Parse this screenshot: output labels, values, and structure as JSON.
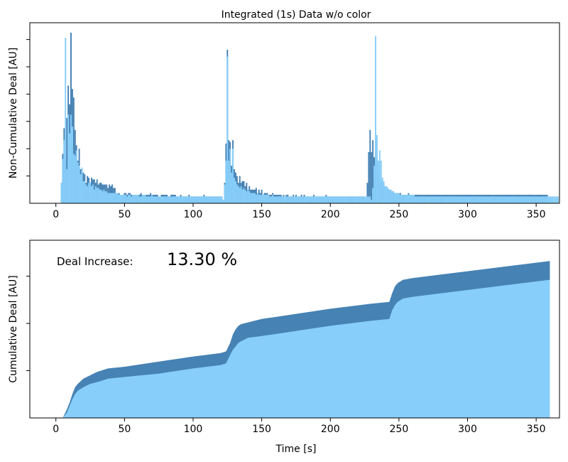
{
  "figure": {
    "title": "Integrated (1s) Data w/o color",
    "annotation_label": "Deal Increase:",
    "annotation_value": "13.30 %"
  },
  "colors": {
    "dark": "#4682B4",
    "light": "#87CEFA",
    "axis": "#000000"
  },
  "chart_data": [
    {
      "type": "bar",
      "title": "Integrated (1s) Data w/o color",
      "xlabel": "",
      "ylabel": "Non-Cumulative Deal [AU]",
      "xlim": [
        -19,
        367
      ],
      "ylim": [
        0,
        1.0
      ],
      "xticks": [
        0,
        50,
        100,
        150,
        200,
        250,
        300,
        350
      ],
      "xtick_labels": [
        "0",
        "50",
        "100",
        "150",
        "200",
        "250",
        "300",
        "350"
      ],
      "yticks": [
        0.16,
        0.32,
        0.48,
        0.64,
        0.8,
        0.96
      ],
      "y_tick_labels_shown": false,
      "grid": false,
      "x_start": 4,
      "x_step": 1,
      "series": [
        {
          "name": "",
          "color": "#4682B4",
          "values": [
            0.12,
            0.29,
            0.44,
            0.28,
            0.5,
            0.69,
            0.58,
            1.0,
            0.67,
            0.62,
            0.43,
            0.34,
            0.25,
            0.32,
            0.2,
            0.14,
            0.18,
            0.17,
            0.12,
            0.16,
            0.15,
            0.12,
            0.15,
            0.14,
            0.14,
            0.12,
            0.14,
            0.11,
            0.12,
            0.12,
            0.11,
            0.11,
            0.11,
            0.11,
            0.09,
            0.11,
            0.1,
            0.11,
            0.09,
            0.09,
            0.06,
            0.06,
            0.06,
            0.05,
            0.05,
            0.05,
            0.06,
            0.06,
            0.05,
            0.06,
            0.06,
            0.05,
            0.05,
            0.05,
            0.05,
            0.05,
            0.05,
            0.05,
            0.06,
            0.05,
            0.05,
            0.05,
            0.05,
            0.05,
            0.05,
            0.06,
            0.05,
            0.05,
            0.05,
            0.05,
            0.05,
            0.04,
            0.04,
            0.05,
            0.05,
            0.05,
            0.05,
            0.05,
            0.04,
            0.04,
            0.05,
            0.05,
            0.05,
            0.05,
            0.04,
            0.04,
            0.04,
            0.05,
            0.04,
            0.04,
            0.04,
            0.04,
            0.04,
            0.05,
            0.04,
            0.04,
            0.04,
            0.04,
            0.04,
            0.04,
            0.04,
            0.04,
            0.04,
            0.04,
            0.05,
            0.04,
            0.04,
            0.04,
            0.04,
            0.04,
            0.04,
            0.04,
            0.04,
            0.04,
            0.04,
            0.04,
            0.04,
            0.04,
            0.02,
            0.12,
            0.35,
            0.9,
            0.37,
            0.36,
            0.22,
            0.37,
            0.2,
            0.18,
            0.16,
            0.12,
            0.16,
            0.12,
            0.13,
            0.13,
            0.1,
            0.12,
            0.08,
            0.1,
            0.08,
            0.08,
            0.08,
            0.08,
            0.09,
            0.06,
            0.08,
            0.06,
            0.08,
            0.05,
            0.06,
            0.06,
            0.06,
            0.05,
            0.05,
            0.05,
            0.06,
            0.05,
            0.05,
            0.05,
            0.05,
            0.05,
            0.05,
            0.04,
            0.05,
            0.04,
            0.05,
            0.05,
            0.04,
            0.04,
            0.04,
            0.05,
            0.04,
            0.05,
            0.04,
            0.04,
            0.04,
            0.05,
            0.04,
            0.05,
            0.04,
            0.04,
            0.04,
            0.04,
            0.04,
            0.04,
            0.05,
            0.04,
            0.04,
            0.04,
            0.04,
            0.04,
            0.04,
            0.04,
            0.04,
            0.05,
            0.04,
            0.04,
            0.04,
            0.04,
            0.04,
            0.04,
            0.04,
            0.04,
            0.04,
            0.04,
            0.04,
            0.04,
            0.04,
            0.04,
            0.04,
            0.04,
            0.04,
            0.04,
            0.04,
            0.04,
            0.04,
            0.04,
            0.04,
            0.04,
            0.04,
            0.04,
            0.04,
            0.04,
            0.02,
            0.12,
            0.3,
            0.43,
            0.3,
            0.37,
            0.27,
            0.3,
            0.24,
            0.18,
            0.14,
            0.13,
            0.12,
            0.1,
            0.1,
            0.08,
            0.09,
            0.07,
            0.08,
            0.07,
            0.07,
            0.06,
            0.06,
            0.06,
            0.05,
            0.06,
            0.05,
            0.05,
            0.05,
            0.05,
            0.05,
            0.06,
            0.05,
            0.05,
            0.05,
            0.05,
            0.05,
            0.05,
            0.05,
            0.05,
            0.05,
            0.05,
            0.05,
            0.05,
            0.05,
            0.05,
            0.05,
            0.05,
            0.05,
            0.05,
            0.05,
            0.05,
            0.05,
            0.05,
            0.05,
            0.05,
            0.05,
            0.05,
            0.05,
            0.05,
            0.05,
            0.05,
            0.05,
            0.05,
            0.05,
            0.05,
            0.05,
            0.05,
            0.05,
            0.05,
            0.05,
            0.05,
            0.05,
            0.05,
            0.05,
            0.05,
            0.05,
            0.05,
            0.05,
            0.05,
            0.05,
            0.05,
            0.05,
            0.05,
            0.05,
            0.05,
            0.05,
            0.05,
            0.05,
            0.05,
            0.05,
            0.05,
            0.05,
            0.05,
            0.05,
            0.05,
            0.05,
            0.05,
            0.05,
            0.05,
            0.05,
            0.05,
            0.05,
            0.05,
            0.05,
            0.05,
            0.05,
            0.05,
            0.05,
            0.05,
            0.05,
            0.05,
            0.05,
            0.05,
            0.05,
            0.05,
            0.05,
            0.05,
            0.05,
            0.05,
            0.05,
            0.05,
            0.05,
            0.05,
            0.05,
            0.05,
            0.05,
            0.05,
            0.05,
            0.05,
            0.05,
            0.05,
            0.05
          ]
        },
        {
          "name": "",
          "color": "#87CEFA",
          "values": [
            0.12,
            0.26,
            0.37,
            0.97,
            0.2,
            0.52,
            0.41,
            0.52,
            0.45,
            0.29,
            0.28,
            0.31,
            0.24,
            0.22,
            0.17,
            0.21,
            0.13,
            0.13,
            0.11,
            0.1,
            0.12,
            0.12,
            0.1,
            0.11,
            0.08,
            0.1,
            0.09,
            0.09,
            0.08,
            0.08,
            0.07,
            0.08,
            0.07,
            0.07,
            0.06,
            0.06,
            0.06,
            0.06,
            0.06,
            0.06,
            0.06,
            0.06,
            0.05,
            0.05,
            0.05,
            0.05,
            0.05,
            0.05,
            0.04,
            0.05,
            0.05,
            0.04,
            0.05,
            0.05,
            0.05,
            0.05,
            0.05,
            0.04,
            0.04,
            0.05,
            0.05,
            0.05,
            0.04,
            0.04,
            0.04,
            0.04,
            0.05,
            0.04,
            0.04,
            0.04,
            0.04,
            0.04,
            0.04,
            0.04,
            0.04,
            0.04,
            0.04,
            0.04,
            0.04,
            0.04,
            0.04,
            0.04,
            0.04,
            0.04,
            0.04,
            0.04,
            0.04,
            0.04,
            0.04,
            0.04,
            0.04,
            0.04,
            0.04,
            0.04,
            0.04,
            0.04,
            0.04,
            0.04,
            0.04,
            0.04,
            0.04,
            0.04,
            0.04,
            0.04,
            0.04,
            0.04,
            0.04,
            0.04,
            0.04,
            0.04,
            0.04,
            0.04,
            0.04,
            0.04,
            0.04,
            0.04,
            0.04,
            0.04,
            0.02,
            0.11,
            0.25,
            0.86,
            0.25,
            0.32,
            0.18,
            0.32,
            0.15,
            0.13,
            0.11,
            0.1,
            0.09,
            0.1,
            0.08,
            0.09,
            0.08,
            0.07,
            0.08,
            0.07,
            0.06,
            0.06,
            0.06,
            0.06,
            0.05,
            0.06,
            0.05,
            0.05,
            0.05,
            0.05,
            0.05,
            0.05,
            0.05,
            0.05,
            0.04,
            0.04,
            0.05,
            0.04,
            0.04,
            0.04,
            0.04,
            0.04,
            0.04,
            0.04,
            0.04,
            0.04,
            0.04,
            0.04,
            0.04,
            0.04,
            0.04,
            0.04,
            0.04,
            0.04,
            0.04,
            0.04,
            0.04,
            0.04,
            0.04,
            0.04,
            0.04,
            0.04,
            0.04,
            0.04,
            0.04,
            0.04,
            0.04,
            0.04,
            0.04,
            0.04,
            0.04,
            0.04,
            0.04,
            0.04,
            0.04,
            0.04,
            0.04,
            0.04,
            0.04,
            0.04,
            0.04,
            0.04,
            0.04,
            0.04,
            0.04,
            0.04,
            0.04,
            0.04,
            0.04,
            0.04,
            0.04,
            0.04,
            0.04,
            0.04,
            0.04,
            0.04,
            0.04,
            0.04,
            0.04,
            0.04,
            0.04,
            0.04,
            0.04,
            0.04,
            0.04,
            0.04,
            0.04,
            0.04,
            0.02,
            0.09,
            0.22,
            0.98,
            0.4,
            0.25,
            0.31,
            0.25,
            0.15,
            0.13,
            0.1,
            0.1,
            0.09,
            0.08,
            0.08,
            0.07,
            0.07,
            0.06,
            0.06,
            0.06,
            0.06,
            0.05,
            0.05,
            0.05,
            0.05,
            0.05,
            0.05,
            0.05,
            0.05,
            0.05,
            0.05,
            0.05,
            0.04,
            0.04,
            0.04,
            0.04,
            0.04,
            0.04,
            0.04,
            0.04,
            0.04,
            0.04,
            0.04,
            0.04,
            0.04,
            0.04,
            0.04,
            0.04,
            0.04,
            0.04,
            0.04,
            0.04,
            0.04,
            0.04,
            0.04,
            0.04,
            0.04,
            0.04,
            0.04,
            0.04,
            0.04,
            0.04,
            0.04,
            0.04,
            0.04,
            0.04,
            0.04,
            0.04,
            0.04,
            0.04,
            0.04,
            0.04,
            0.04,
            0.04,
            0.04,
            0.04,
            0.04,
            0.04,
            0.04,
            0.04,
            0.04,
            0.04,
            0.04,
            0.04,
            0.04,
            0.04,
            0.04,
            0.04,
            0.04,
            0.04,
            0.04,
            0.04,
            0.04,
            0.04,
            0.04,
            0.04,
            0.04,
            0.04,
            0.04,
            0.04,
            0.04,
            0.04,
            0.04,
            0.04,
            0.04,
            0.04,
            0.04,
            0.04,
            0.04,
            0.04,
            0.04,
            0.04,
            0.04,
            0.04,
            0.04,
            0.04,
            0.04,
            0.04,
            0.04,
            0.04,
            0.04,
            0.04,
            0.04,
            0.04,
            0.04,
            0.04,
            0.04,
            0.04,
            0.04,
            0.04,
            0.04,
            0.04,
            0.04,
            0.04,
            0.04,
            0.04,
            0.04
          ]
        }
      ]
    },
    {
      "type": "area",
      "title": "",
      "xlabel": "Time [s]",
      "ylabel": "Cumulative Deal [AU]",
      "xlim": [
        -19,
        367
      ],
      "ylim": [
        0,
        1.0
      ],
      "xticks": [
        0,
        50,
        100,
        150,
        200,
        250,
        300,
        350
      ],
      "xtick_labels": [
        "0",
        "50",
        "100",
        "150",
        "200",
        "250",
        "300",
        "350"
      ],
      "yticks": [
        0.277,
        0.554,
        0.831
      ],
      "y_tick_labels_shown": false,
      "grid": false,
      "series": [
        {
          "name": "",
          "color": "#4682B4",
          "x": [
            5,
            8,
            10,
            12,
            14,
            16,
            20,
            25,
            30,
            38,
            50,
            75,
            100,
            120,
            124,
            127,
            129,
            131,
            133,
            135,
            140,
            150,
            175,
            200,
            230,
            243,
            245,
            247,
            249,
            251,
            253,
            260,
            280,
            300,
            330,
            360
          ],
          "y": [
            0.0,
            0.05,
            0.09,
            0.14,
            0.18,
            0.2,
            0.23,
            0.25,
            0.27,
            0.29,
            0.3,
            0.33,
            0.36,
            0.38,
            0.39,
            0.44,
            0.49,
            0.52,
            0.54,
            0.55,
            0.56,
            0.58,
            0.61,
            0.64,
            0.67,
            0.68,
            0.73,
            0.77,
            0.79,
            0.8,
            0.81,
            0.82,
            0.84,
            0.86,
            0.89,
            0.92
          ]
        },
        {
          "name": "",
          "color": "#87CEFA",
          "x": [
            5,
            8,
            10,
            12,
            14,
            16,
            20,
            25,
            30,
            38,
            50,
            75,
            100,
            120,
            124,
            127,
            129,
            131,
            133,
            135,
            140,
            150,
            175,
            200,
            230,
            243,
            245,
            247,
            249,
            251,
            253,
            260,
            280,
            300,
            330,
            360
          ],
          "y": [
            0.0,
            0.03,
            0.07,
            0.11,
            0.14,
            0.16,
            0.18,
            0.2,
            0.21,
            0.23,
            0.24,
            0.26,
            0.29,
            0.31,
            0.32,
            0.37,
            0.4,
            0.42,
            0.44,
            0.45,
            0.47,
            0.48,
            0.51,
            0.54,
            0.57,
            0.58,
            0.63,
            0.66,
            0.68,
            0.69,
            0.7,
            0.71,
            0.73,
            0.75,
            0.78,
            0.81
          ]
        }
      ]
    }
  ]
}
